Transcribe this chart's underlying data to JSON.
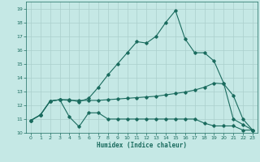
{
  "title": "",
  "xlabel": "Humidex (Indice chaleur)",
  "xlim": [
    -0.5,
    23.5
  ],
  "ylim": [
    10,
    19.5
  ],
  "yticks": [
    10,
    11,
    12,
    13,
    14,
    15,
    16,
    17,
    18,
    19
  ],
  "xticks": [
    0,
    1,
    2,
    3,
    4,
    5,
    6,
    7,
    8,
    9,
    10,
    11,
    12,
    13,
    14,
    15,
    16,
    17,
    18,
    19,
    20,
    21,
    22,
    23
  ],
  "bg_color": "#c5e8e5",
  "grid_color": "#aacfcc",
  "line_color": "#1a6b5e",
  "line1_x": [
    0,
    1,
    2,
    3,
    4,
    5,
    6,
    7,
    8,
    9,
    10,
    11,
    12,
    13,
    14,
    15,
    16,
    17,
    18,
    19,
    20,
    21,
    22,
    23
  ],
  "line1_y": [
    10.9,
    11.3,
    12.3,
    12.4,
    11.15,
    10.45,
    11.45,
    11.45,
    11.0,
    11.0,
    11.0,
    11.0,
    11.0,
    11.0,
    11.0,
    11.0,
    11.0,
    11.0,
    10.7,
    10.5,
    10.5,
    10.5,
    10.2,
    10.2
  ],
  "line2_x": [
    0,
    1,
    2,
    3,
    4,
    5,
    6,
    7,
    8,
    9,
    10,
    11,
    12,
    13,
    14,
    15,
    16,
    17,
    18,
    19,
    20,
    21,
    22,
    23
  ],
  "line2_y": [
    10.9,
    11.3,
    12.3,
    12.4,
    12.35,
    12.35,
    12.35,
    12.35,
    12.4,
    12.45,
    12.5,
    12.55,
    12.6,
    12.65,
    12.75,
    12.85,
    12.95,
    13.1,
    13.3,
    13.6,
    13.55,
    12.7,
    11.0,
    10.2
  ],
  "line3_x": [
    0,
    1,
    2,
    3,
    4,
    5,
    6,
    7,
    8,
    9,
    10,
    11,
    12,
    13,
    14,
    15,
    16,
    17,
    18,
    19,
    20,
    21,
    22,
    23
  ],
  "line3_y": [
    10.9,
    11.3,
    12.3,
    12.4,
    12.4,
    12.25,
    12.5,
    13.3,
    14.2,
    15.0,
    15.8,
    16.6,
    16.5,
    17.0,
    18.0,
    18.85,
    16.8,
    15.8,
    15.8,
    15.2,
    13.6,
    11.0,
    10.6,
    10.2
  ]
}
